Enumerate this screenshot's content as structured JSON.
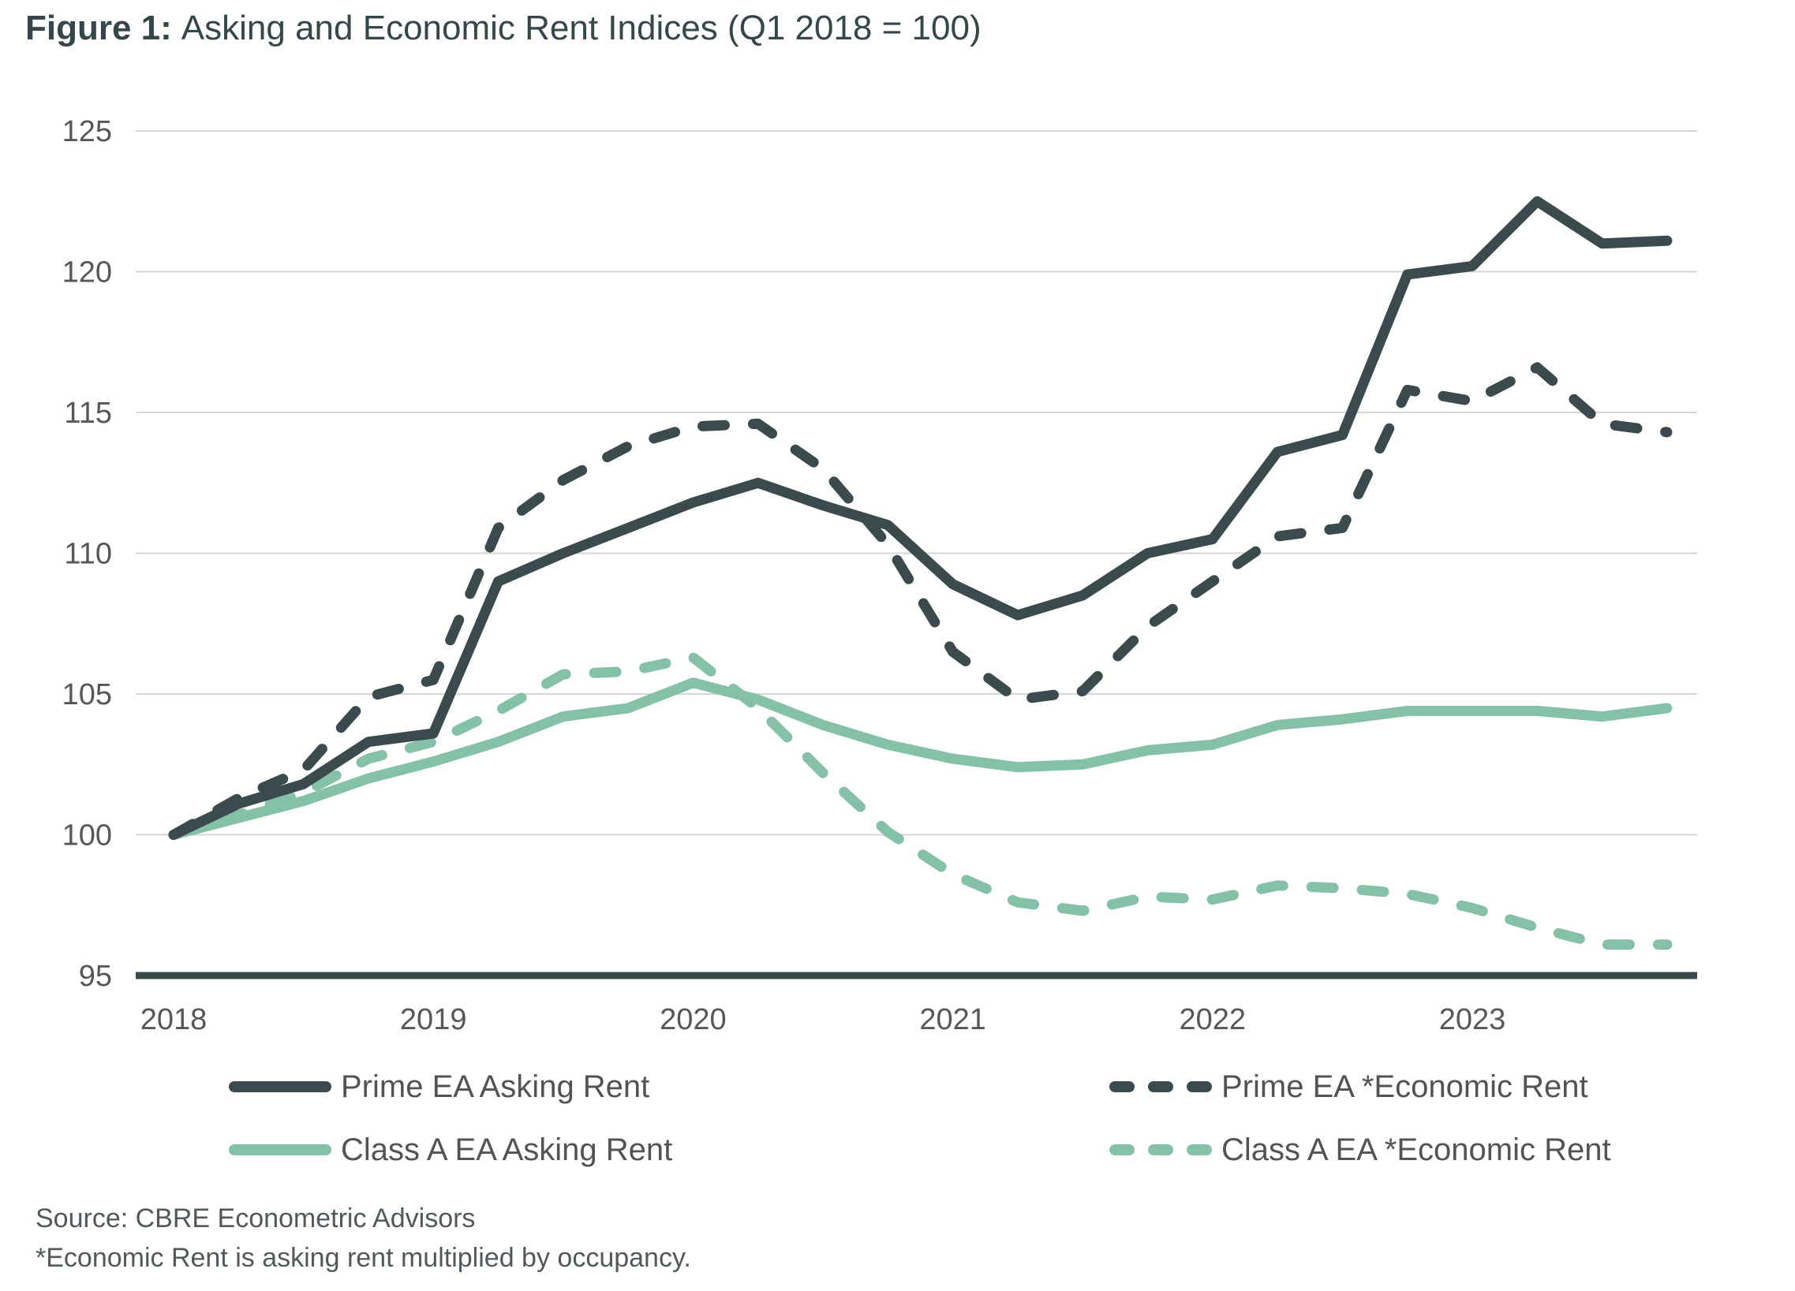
{
  "title": {
    "prefix": "Figure 1:",
    "text": "Asking and Economic Rent Indices (Q1 2018 = 100)"
  },
  "legend": [
    {
      "label": "Prime EA Asking Rent",
      "style": "solid",
      "color": "#3B4A4D"
    },
    {
      "label": "Prime EA *Economic Rent",
      "style": "dashed",
      "color": "#3B4A4D"
    },
    {
      "label": "Class A EA Asking Rent",
      "style": "solid",
      "color": "#85C0A8"
    },
    {
      "label": "Class A EA *Economic Rent",
      "style": "dashed",
      "color": "#85C0A8"
    }
  ],
  "footnotes": {
    "source": "Source: CBRE Econometric Advisors",
    "note": "*Economic Rent is asking rent multiplied by occupancy."
  },
  "colors": {
    "prime": "#3B4A4D",
    "class_a": "#85C0A8",
    "gridline": "#D6D6D6",
    "axis_line": "#3B4A4D",
    "tick_label": "#55585A",
    "title_text": "#36474B",
    "legend_text": "#515457",
    "footnote_text": "#51595C",
    "background": "#FFFFFF"
  },
  "chart_data": {
    "type": "line",
    "title": "Figure 1: Asking and Economic Rent Indices (Q1 2018 = 100)",
    "xlabel": "",
    "ylabel": "",
    "ylim": [
      95,
      125
    ],
    "yticks": [
      95,
      100,
      105,
      110,
      115,
      120,
      125
    ],
    "grid": true,
    "legend_position": "bottom",
    "x_year_ticks": [
      "2018",
      "2019",
      "2020",
      "2021",
      "2022",
      "2023"
    ],
    "x": [
      "2018 Q1",
      "2018 Q2",
      "2018 Q3",
      "2018 Q4",
      "2019 Q1",
      "2019 Q2",
      "2019 Q3",
      "2019 Q4",
      "2020 Q1",
      "2020 Q2",
      "2020 Q3",
      "2020 Q4",
      "2021 Q1",
      "2021 Q2",
      "2021 Q3",
      "2021 Q4",
      "2022 Q1",
      "2022 Q2",
      "2022 Q3",
      "2022 Q4",
      "2023 Q1",
      "2023 Q2",
      "2023 Q3",
      "2023 Q4"
    ],
    "series": [
      {
        "name": "Prime EA Asking Rent",
        "style": "solid",
        "color": "#3B4A4D",
        "values": [
          100.0,
          101.1,
          101.8,
          103.3,
          103.6,
          109.0,
          110.0,
          110.9,
          111.8,
          112.5,
          111.7,
          111.0,
          108.9,
          107.8,
          108.5,
          110.0,
          110.5,
          113.6,
          114.2,
          119.9,
          120.2,
          122.5,
          121.0,
          121.1
        ]
      },
      {
        "name": "Prime EA *Economic Rent",
        "style": "dashed",
        "color": "#3B4A4D",
        "values": [
          100.0,
          101.3,
          102.3,
          104.9,
          105.5,
          110.9,
          112.6,
          113.8,
          114.5,
          114.6,
          113.0,
          110.3,
          106.5,
          104.8,
          105.1,
          107.4,
          109.0,
          110.6,
          110.9,
          115.8,
          115.4,
          116.6,
          114.6,
          114.3
        ]
      },
      {
        "name": "Class A EA Asking Rent",
        "style": "solid",
        "color": "#85C0A8",
        "values": [
          100.0,
          100.6,
          101.2,
          102.0,
          102.6,
          103.3,
          104.2,
          104.5,
          105.4,
          104.8,
          103.9,
          103.2,
          102.7,
          102.4,
          102.5,
          103.0,
          103.2,
          103.9,
          104.1,
          104.4,
          104.4,
          104.4,
          104.2,
          104.5
        ]
      },
      {
        "name": "Class A EA *Economic Rent",
        "style": "dashed",
        "color": "#85C0A8",
        "values": [
          100.0,
          100.7,
          101.5,
          102.7,
          103.3,
          104.4,
          105.7,
          105.8,
          106.3,
          104.5,
          102.2,
          100.1,
          98.6,
          97.6,
          97.3,
          97.8,
          97.7,
          98.2,
          98.1,
          97.9,
          97.4,
          96.7,
          96.1,
          96.1
        ]
      }
    ]
  }
}
